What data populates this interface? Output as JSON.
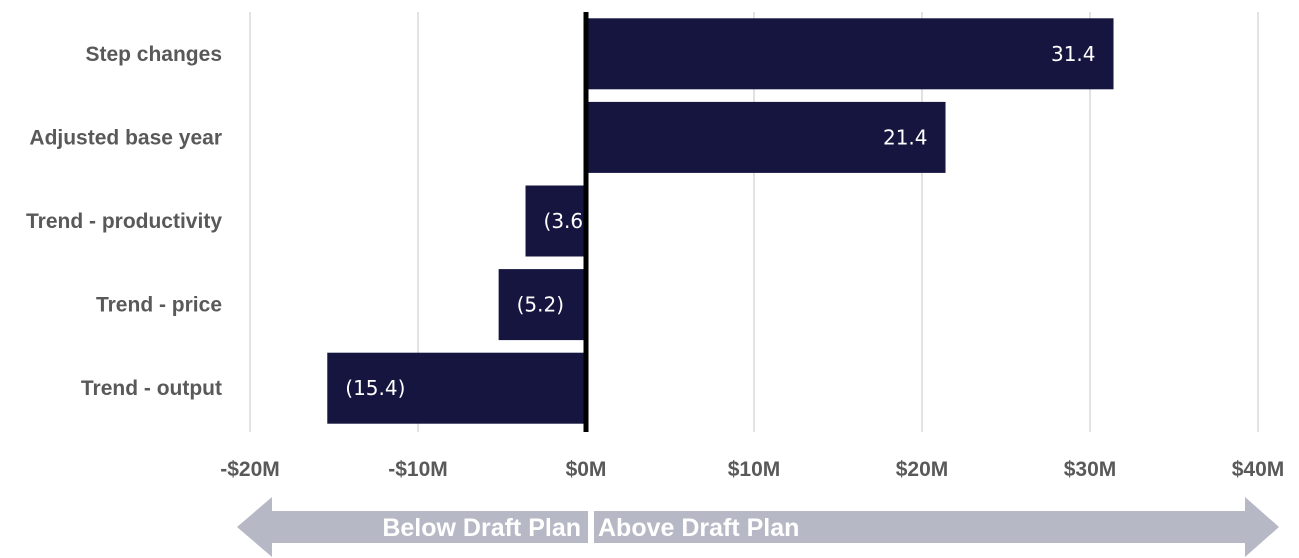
{
  "chart_data": {
    "type": "bar",
    "orientation": "horizontal",
    "categories": [
      "Step changes",
      "Adjusted base year",
      "Trend - productivity",
      "Trend - price",
      "Trend - output"
    ],
    "values": [
      31.4,
      21.4,
      -3.6,
      -5.2,
      -15.4
    ],
    "data_labels": [
      "31.4",
      "21.4",
      "(3.6)",
      "(5.2)",
      "(15.4)"
    ],
    "xlim": [
      -20,
      40
    ],
    "x_ticks": [
      -20,
      -10,
      0,
      10,
      20,
      30,
      40
    ],
    "x_tick_labels": [
      "-$20M",
      "-$10M",
      "$0M",
      "$10M",
      "$20M",
      "$30M",
      "$40M"
    ],
    "grid": "vertical",
    "bar_color": "#15153f",
    "zero_line_color": "#000000",
    "gridline_color": "#d9d9d9"
  },
  "direction_arrow": {
    "left_label": "Below Draft Plan",
    "right_label": "Above Draft Plan",
    "color": "#b7b8c6"
  }
}
